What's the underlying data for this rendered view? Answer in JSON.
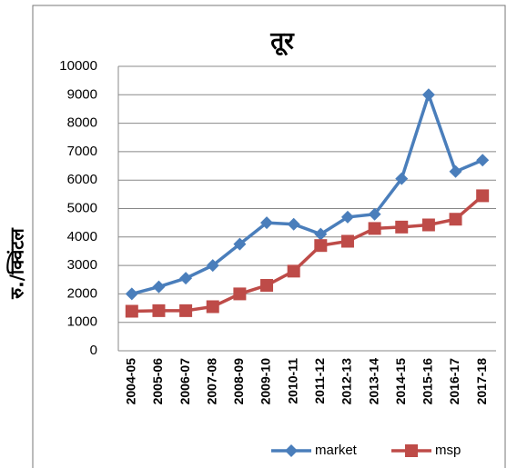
{
  "chart_data": {
    "type": "line",
    "title": "तूर",
    "y_label": "रु./क्विंटल",
    "categories": [
      "2004-05",
      "2005-06",
      "2006-07",
      "2007-08",
      "2008-09",
      "2009-10",
      "2010-11",
      "2011-12",
      "2012-13",
      "2013-14",
      "2014-15",
      "2015-16",
      "2016-17",
      "2017-18"
    ],
    "series": [
      {
        "name": "market",
        "color": "#4a7ebb",
        "marker": "diamond",
        "values": [
          2000,
          2250,
          2550,
          3000,
          3750,
          4500,
          4450,
          4100,
          4700,
          4800,
          6050,
          9000,
          6300,
          6700
        ]
      },
      {
        "name": "msp",
        "color": "#be4b48",
        "marker": "square",
        "values": [
          1390,
          1410,
          1410,
          1550,
          2000,
          2300,
          2800,
          3700,
          3850,
          4300,
          4350,
          4425,
          4625,
          5450
        ]
      }
    ],
    "ylim": [
      0,
      10000
    ],
    "yticks": [
      0,
      1000,
      2000,
      3000,
      4000,
      5000,
      6000,
      7000,
      8000,
      9000,
      10000
    ],
    "grid": true,
    "legend": "bottom"
  }
}
